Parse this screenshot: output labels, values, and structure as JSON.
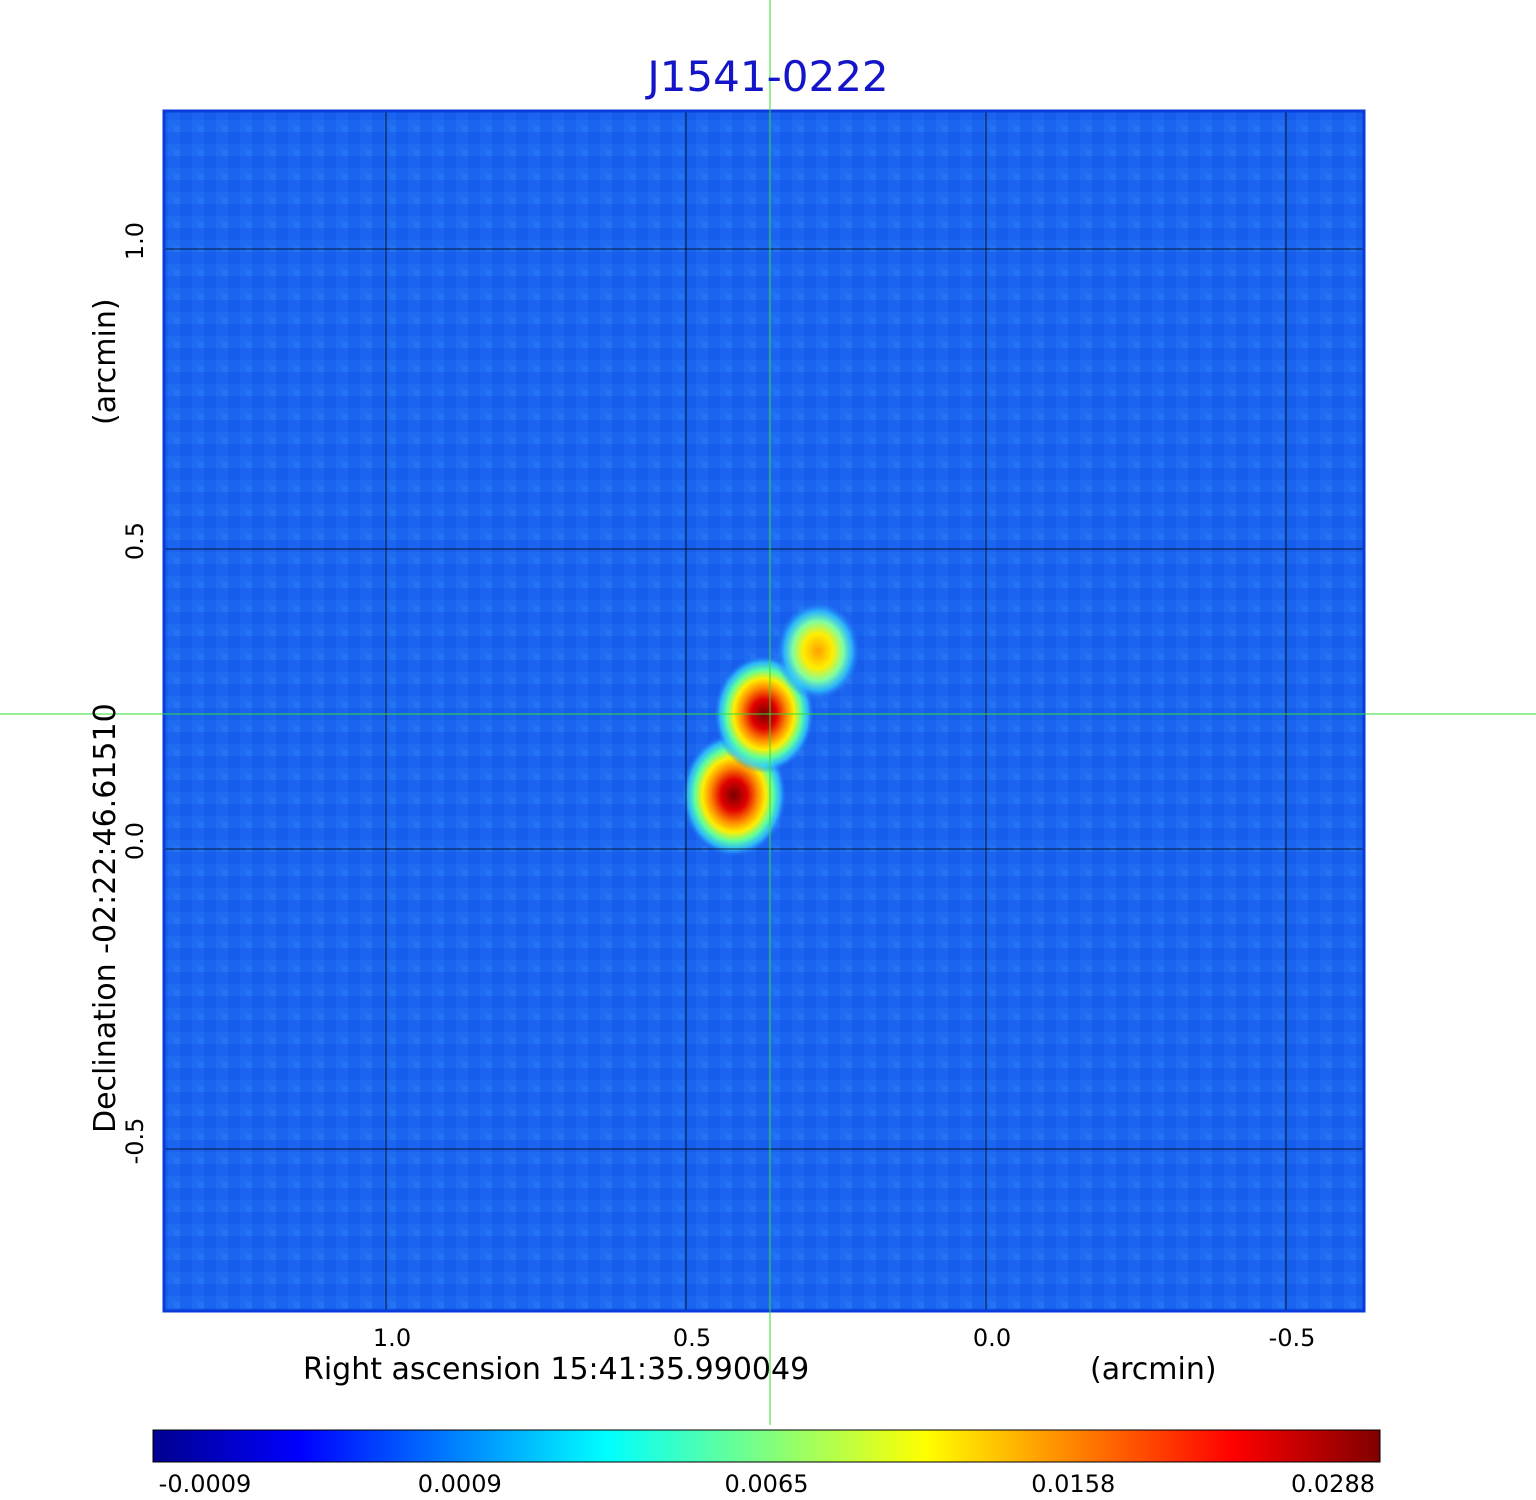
{
  "chart_data": {
    "type": "heatmap",
    "title": "J1541-0222",
    "xlabel": "Right ascension  15:41:35.990049",
    "xunit": "(arcmin)",
    "ylabel": "Declination  -02:22:46.61510",
    "yunit": "(arcmin)",
    "xlim": [
      1.37,
      -0.63
    ],
    "ylim": [
      -0.77,
      1.23
    ],
    "x_ticks": [
      1.0,
      0.5,
      0.0,
      -0.5
    ],
    "x_tick_labels": [
      "1.0",
      "0.5",
      "0.0",
      "-0.5"
    ],
    "y_ticks": [
      1.0,
      0.5,
      0.0,
      -0.5
    ],
    "y_tick_labels": [
      "1.0",
      "0.5",
      "0.0",
      "-0.5"
    ],
    "grid": true,
    "crosshair": {
      "x": 0.36,
      "y": 0.225,
      "color": "#33dd33"
    },
    "sources": [
      {
        "x": 0.42,
        "y": 0.09,
        "peak": 0.0288
      },
      {
        "x": 0.37,
        "y": 0.225,
        "peak": 0.026
      },
      {
        "x": 0.28,
        "y": 0.33,
        "peak": 0.017
      }
    ],
    "colorbar": {
      "colormap": "jet",
      "position": "bottom",
      "tick_labels": [
        "-0.0009",
        "0.0009",
        "0.0065",
        "0.0158",
        "0.0288"
      ],
      "range": [
        -0.0009,
        0.0288
      ]
    },
    "colors": {
      "title": "#1414c8",
      "frame": "#0a3cdc",
      "background_map": "#1b64f0"
    }
  }
}
